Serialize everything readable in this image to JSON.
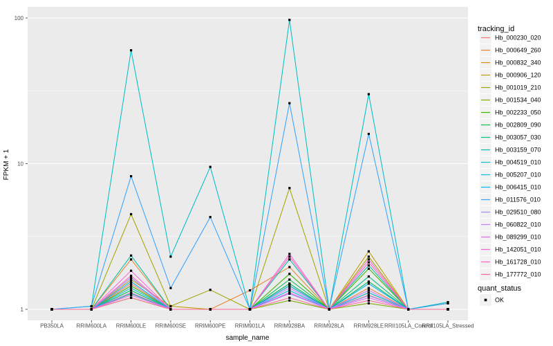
{
  "figure": {
    "background": "#FFFFFF",
    "panel_background": "#EBEBEB",
    "grid_color": "#FFFFFF",
    "tick_label_color": "#4D4D4D",
    "legend_key_background": "#F2F2F2"
  },
  "chart_data": {
    "type": "line",
    "xlabel": "sample_name",
    "ylabel": "FPKM + 1",
    "y_scale": "log10",
    "y_ticks": [
      "1",
      "10",
      "100"
    ],
    "y_tick_values": [
      1,
      10,
      100
    ],
    "y_minor_tick_values": [
      3.162,
      31.62
    ],
    "ylim": [
      0.84,
      119
    ],
    "grid": true,
    "point_shape": "square",
    "point_color": "#000000",
    "legend_position": "right",
    "categories": [
      "PB350LA",
      "RRIM600LA",
      "RRIM600LE",
      "RRIM600SE",
      "RRIM600PE",
      "RRIM901LA",
      "RRIM928BA",
      "RRIM928LA",
      "RRIM928LE",
      "RRII105LA_Control",
      "RRII105LA_Stressed"
    ],
    "series": [
      {
        "name": "Hb_000230_020",
        "color": "#F8766D",
        "values": [
          1,
          1,
          1.5,
          1,
          1,
          1,
          1.3,
          1,
          1.25,
          1,
          1
        ]
      },
      {
        "name": "Hb_000649_260",
        "color": "#EA8331",
        "values": [
          1,
          1,
          2.2,
          1,
          1,
          1.35,
          1.95,
          1,
          1.4,
          1,
          1
        ]
      },
      {
        "name": "Hb_000832_340",
        "color": "#D89000",
        "values": [
          1,
          1,
          1.3,
          1,
          1,
          1,
          1.45,
          1,
          1.3,
          1,
          1
        ]
      },
      {
        "name": "Hb_000906_120",
        "color": "#C09B00",
        "values": [
          1,
          1,
          1.6,
          1.05,
          1,
          1,
          1.5,
          1,
          2.5,
          1,
          1
        ]
      },
      {
        "name": "Hb_001019_210",
        "color": "#A3A500",
        "values": [
          1,
          1,
          4.5,
          1.05,
          1.36,
          1,
          6.8,
          1,
          2.3,
          1,
          1.1
        ]
      },
      {
        "name": "Hb_001534_040",
        "color": "#7CAE00",
        "values": [
          1,
          1,
          1.2,
          1,
          1,
          1,
          1.15,
          1,
          1.1,
          1,
          1
        ]
      },
      {
        "name": "Hb_002233_050",
        "color": "#39B600",
        "values": [
          1,
          1,
          1.45,
          1,
          1,
          1,
          1.75,
          1,
          1.9,
          1,
          1
        ]
      },
      {
        "name": "Hb_002809_090",
        "color": "#00BB4E",
        "values": [
          1,
          1,
          1.35,
          1,
          1,
          1,
          1.6,
          1,
          1.55,
          1,
          1
        ]
      },
      {
        "name": "Hb_003057_030",
        "color": "#00BF7D",
        "values": [
          1,
          1,
          1.28,
          1,
          1,
          1,
          1.5,
          1,
          1.68,
          1,
          1
        ]
      },
      {
        "name": "Hb_003159_070",
        "color": "#00C1A3",
        "values": [
          1,
          1,
          2.34,
          1,
          1,
          1,
          2.2,
          1,
          2.0,
          1,
          1
        ]
      },
      {
        "name": "Hb_004519_010",
        "color": "#00BFC4",
        "values": [
          1,
          1.05,
          60,
          2.3,
          9.5,
          1,
          97,
          1,
          30,
          1,
          1.12
        ]
      },
      {
        "name": "Hb_005207_010",
        "color": "#00BAE0",
        "values": [
          1,
          1,
          1.4,
          1,
          1,
          1,
          1.35,
          1,
          1.3,
          1,
          1
        ]
      },
      {
        "name": "Hb_006415_010",
        "color": "#00B0F6",
        "values": [
          1,
          1,
          1.55,
          1,
          1,
          1,
          1.45,
          1,
          1.5,
          1,
          1
        ]
      },
      {
        "name": "Hb_011576_010",
        "color": "#35A2FF",
        "values": [
          1,
          1.05,
          8.2,
          1.4,
          4.3,
          1,
          26,
          1,
          16,
          1,
          1.1
        ]
      },
      {
        "name": "Hb_029510_080",
        "color": "#9590FF",
        "values": [
          1,
          1,
          1.65,
          1,
          1,
          1,
          1.28,
          1,
          1.24,
          1,
          1
        ]
      },
      {
        "name": "Hb_060822_010",
        "color": "#C77CFF",
        "values": [
          1,
          1,
          1.3,
          1,
          1,
          1,
          1.4,
          1,
          1.35,
          1,
          1
        ]
      },
      {
        "name": "Hb_089299_010",
        "color": "#E76BF3",
        "values": [
          1,
          1,
          1.25,
          1,
          1,
          1,
          1.3,
          1,
          1.2,
          1,
          1
        ]
      },
      {
        "name": "Hb_142051_010",
        "color": "#FA62DB",
        "values": [
          1,
          1,
          1.84,
          1,
          1,
          1,
          2.4,
          1,
          2.2,
          1,
          1
        ]
      },
      {
        "name": "Hb_161728_010",
        "color": "#FF62BC",
        "values": [
          1,
          1,
          1.7,
          1,
          1,
          1,
          2.3,
          1,
          2.1,
          1,
          1
        ]
      },
      {
        "name": "Hb_177772_010",
        "color": "#FF6A98",
        "values": [
          1,
          1,
          1.2,
          1,
          1,
          1,
          1.2,
          1,
          1.15,
          1,
          1
        ]
      }
    ],
    "legend": {
      "color_title": "tracking_id",
      "shape_title": "quant_status",
      "shape_items": [
        {
          "label": "OK"
        }
      ]
    }
  }
}
